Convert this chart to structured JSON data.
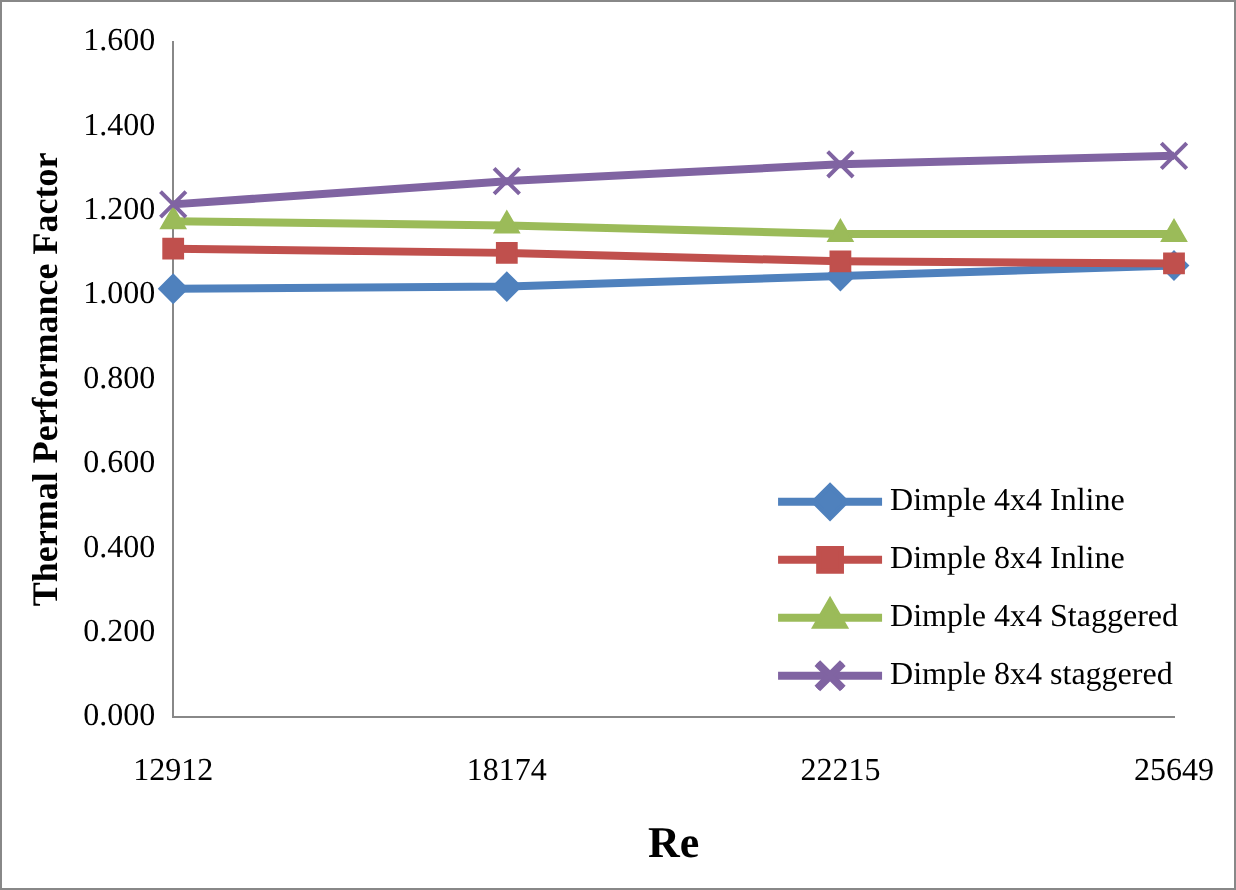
{
  "chart_data": {
    "type": "line",
    "xlabel": "Re",
    "ylabel": "Thermal Performance Factor",
    "categories": [
      "12912",
      "18174",
      "22215",
      "25649"
    ],
    "series": [
      {
        "name": "Dimple 4x4 Inline",
        "color": "#4f81bd",
        "marker": "diamond",
        "values": [
          1.015,
          1.02,
          1.045,
          1.07
        ]
      },
      {
        "name": "Dimple 8x4 Inline",
        "color": "#c0504d",
        "marker": "square",
        "values": [
          1.11,
          1.1,
          1.08,
          1.075
        ]
      },
      {
        "name": "Dimple 4x4 Staggered",
        "color": "#9bbb59",
        "marker": "triangle",
        "values": [
          1.175,
          1.165,
          1.145,
          1.145
        ]
      },
      {
        "name": "Dimple 8x4 staggered",
        "color": "#8064a2",
        "marker": "cross",
        "values": [
          1.215,
          1.27,
          1.31,
          1.33
        ]
      }
    ],
    "ylim": [
      0,
      1.6
    ],
    "yticks": [
      {
        "value": 0,
        "label": "0.000"
      },
      {
        "value": 0.2,
        "label": "0.200"
      },
      {
        "value": 0.4,
        "label": "0.400"
      },
      {
        "value": 0.6,
        "label": "0.600"
      },
      {
        "value": 0.8,
        "label": "0.800"
      },
      {
        "value": 1.0,
        "label": "1.000"
      },
      {
        "value": 1.2,
        "label": "1.200"
      },
      {
        "value": 1.4,
        "label": "1.400"
      },
      {
        "value": 1.6,
        "label": "1.600"
      }
    ],
    "grid": false,
    "legend": "bottom right",
    "line_style": "solid"
  }
}
